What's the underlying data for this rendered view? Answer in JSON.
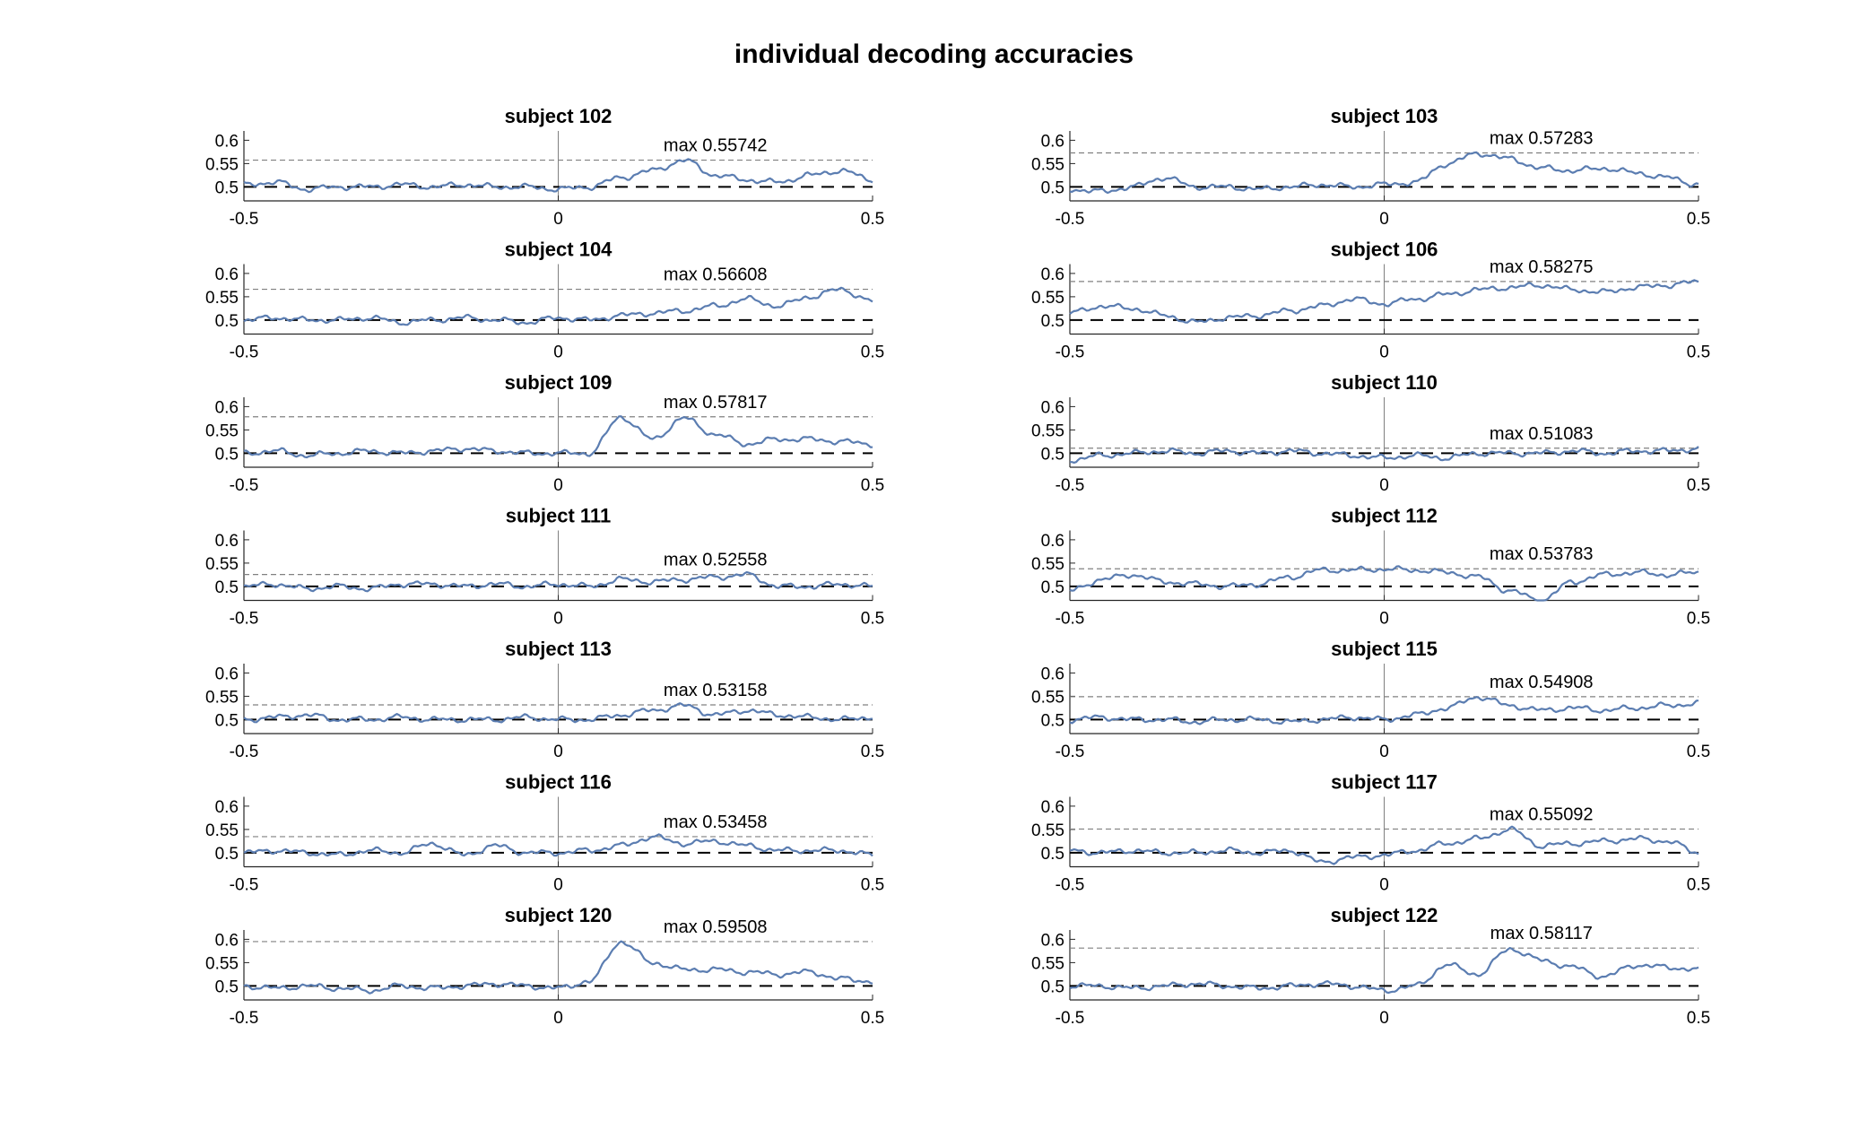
{
  "figure": {
    "title": "individual decoding accuracies"
  },
  "chart_data": [
    {
      "type": "line",
      "title": "subject 102",
      "annotation": "max 0.55742",
      "max": 0.55742,
      "xlim": [
        -0.5,
        0.5
      ],
      "ylim": [
        0.47,
        0.62
      ],
      "xticks": [
        -0.5,
        0,
        0.5
      ],
      "yticks": [
        0.5,
        0.55,
        0.6
      ],
      "chance": 0.5,
      "x": [
        -0.5,
        -0.45,
        -0.4,
        -0.35,
        -0.3,
        -0.25,
        -0.2,
        -0.15,
        -0.1,
        -0.05,
        0,
        0.05,
        0.1,
        0.15,
        0.2,
        0.25,
        0.3,
        0.35,
        0.4,
        0.45,
        0.5
      ],
      "series": [
        {
          "color": "#5b7db1",
          "values": [
            0.505,
            0.51,
            0.495,
            0.5,
            0.5,
            0.505,
            0.5,
            0.505,
            0.5,
            0.5,
            0.495,
            0.5,
            0.52,
            0.535,
            0.557,
            0.525,
            0.515,
            0.51,
            0.525,
            0.535,
            0.515
          ]
        }
      ]
    },
    {
      "type": "line",
      "title": "subject 103",
      "annotation": "max 0.57283",
      "max": 0.57283,
      "xlim": [
        -0.5,
        0.5
      ],
      "ylim": [
        0.47,
        0.62
      ],
      "xticks": [
        -0.5,
        0,
        0.5
      ],
      "yticks": [
        0.5,
        0.55,
        0.6
      ],
      "chance": 0.5,
      "x": [
        -0.5,
        -0.45,
        -0.4,
        -0.35,
        -0.3,
        -0.25,
        -0.2,
        -0.15,
        -0.1,
        -0.05,
        0,
        0.05,
        0.1,
        0.15,
        0.2,
        0.25,
        0.3,
        0.35,
        0.4,
        0.45,
        0.5
      ],
      "series": [
        {
          "color": "#5b7db1",
          "values": [
            0.495,
            0.49,
            0.5,
            0.52,
            0.5,
            0.5,
            0.495,
            0.5,
            0.505,
            0.5,
            0.505,
            0.51,
            0.55,
            0.572,
            0.56,
            0.54,
            0.535,
            0.54,
            0.53,
            0.52,
            0.505
          ]
        }
      ]
    },
    {
      "type": "line",
      "title": "subject 104",
      "annotation": "max 0.56608",
      "max": 0.56608,
      "xlim": [
        -0.5,
        0.5
      ],
      "ylim": [
        0.47,
        0.62
      ],
      "xticks": [
        -0.5,
        0,
        0.5
      ],
      "yticks": [
        0.5,
        0.55,
        0.6
      ],
      "chance": 0.5,
      "x": [
        -0.5,
        -0.45,
        -0.4,
        -0.35,
        -0.3,
        -0.25,
        -0.2,
        -0.15,
        -0.1,
        -0.05,
        0,
        0.05,
        0.1,
        0.15,
        0.2,
        0.25,
        0.3,
        0.35,
        0.4,
        0.45,
        0.5
      ],
      "series": [
        {
          "color": "#5b7db1",
          "values": [
            0.5,
            0.505,
            0.5,
            0.5,
            0.505,
            0.495,
            0.5,
            0.505,
            0.5,
            0.495,
            0.505,
            0.5,
            0.51,
            0.515,
            0.52,
            0.53,
            0.545,
            0.53,
            0.55,
            0.566,
            0.54
          ]
        }
      ]
    },
    {
      "type": "line",
      "title": "subject 106",
      "annotation": "max 0.58275",
      "max": 0.58275,
      "xlim": [
        -0.5,
        0.5
      ],
      "ylim": [
        0.47,
        0.62
      ],
      "xticks": [
        -0.5,
        0,
        0.5
      ],
      "yticks": [
        0.5,
        0.55,
        0.6
      ],
      "chance": 0.5,
      "x": [
        -0.5,
        -0.45,
        -0.4,
        -0.35,
        -0.3,
        -0.25,
        -0.2,
        -0.15,
        -0.1,
        -0.05,
        0,
        0.05,
        0.1,
        0.15,
        0.2,
        0.25,
        0.3,
        0.35,
        0.4,
        0.45,
        0.5
      ],
      "series": [
        {
          "color": "#5b7db1",
          "values": [
            0.515,
            0.53,
            0.525,
            0.51,
            0.495,
            0.505,
            0.51,
            0.52,
            0.53,
            0.545,
            0.535,
            0.545,
            0.555,
            0.565,
            0.57,
            0.575,
            0.565,
            0.56,
            0.57,
            0.575,
            0.582
          ]
        }
      ]
    },
    {
      "type": "line",
      "title": "subject 109",
      "annotation": "max 0.57817",
      "max": 0.57817,
      "xlim": [
        -0.5,
        0.5
      ],
      "ylim": [
        0.47,
        0.62
      ],
      "xticks": [
        -0.5,
        0,
        0.5
      ],
      "yticks": [
        0.5,
        0.55,
        0.6
      ],
      "chance": 0.5,
      "x": [
        -0.5,
        -0.45,
        -0.4,
        -0.35,
        -0.3,
        -0.25,
        -0.2,
        -0.15,
        -0.1,
        -0.05,
        0,
        0.05,
        0.1,
        0.15,
        0.2,
        0.25,
        0.3,
        0.35,
        0.4,
        0.45,
        0.5
      ],
      "series": [
        {
          "color": "#5b7db1",
          "values": [
            0.5,
            0.505,
            0.495,
            0.5,
            0.505,
            0.5,
            0.505,
            0.51,
            0.505,
            0.5,
            0.5,
            0.5,
            0.578,
            0.53,
            0.575,
            0.54,
            0.52,
            0.53,
            0.53,
            0.525,
            0.52
          ]
        }
      ]
    },
    {
      "type": "line",
      "title": "subject 110",
      "annotation": "max 0.51083",
      "max": 0.51083,
      "xlim": [
        -0.5,
        0.5
      ],
      "ylim": [
        0.47,
        0.62
      ],
      "xticks": [
        -0.5,
        0,
        0.5
      ],
      "yticks": [
        0.5,
        0.55,
        0.6
      ],
      "chance": 0.5,
      "x": [
        -0.5,
        -0.45,
        -0.4,
        -0.35,
        -0.3,
        -0.25,
        -0.2,
        -0.15,
        -0.1,
        -0.05,
        0,
        0.05,
        0.1,
        0.15,
        0.2,
        0.25,
        0.3,
        0.35,
        0.4,
        0.45,
        0.5
      ],
      "series": [
        {
          "color": "#5b7db1",
          "values": [
            0.485,
            0.495,
            0.5,
            0.505,
            0.5,
            0.505,
            0.5,
            0.505,
            0.5,
            0.495,
            0.49,
            0.495,
            0.49,
            0.5,
            0.5,
            0.5,
            0.505,
            0.5,
            0.505,
            0.505,
            0.51
          ]
        }
      ]
    },
    {
      "type": "line",
      "title": "subject 111",
      "annotation": "max 0.52558",
      "max": 0.52558,
      "xlim": [
        -0.5,
        0.5
      ],
      "ylim": [
        0.47,
        0.62
      ],
      "xticks": [
        -0.5,
        0,
        0.5
      ],
      "yticks": [
        0.5,
        0.55,
        0.6
      ],
      "chance": 0.5,
      "x": [
        -0.5,
        -0.45,
        -0.4,
        -0.35,
        -0.3,
        -0.25,
        -0.2,
        -0.15,
        -0.1,
        -0.05,
        0,
        0.05,
        0.1,
        0.15,
        0.2,
        0.25,
        0.3,
        0.35,
        0.4,
        0.45,
        0.5
      ],
      "series": [
        {
          "color": "#5b7db1",
          "values": [
            0.5,
            0.505,
            0.495,
            0.5,
            0.495,
            0.505,
            0.505,
            0.5,
            0.505,
            0.5,
            0.505,
            0.5,
            0.515,
            0.51,
            0.515,
            0.52,
            0.525,
            0.5,
            0.5,
            0.505,
            0.5
          ]
        }
      ]
    },
    {
      "type": "line",
      "title": "subject 112",
      "annotation": "max 0.53783",
      "max": 0.53783,
      "xlim": [
        -0.5,
        0.5
      ],
      "ylim": [
        0.47,
        0.62
      ],
      "xticks": [
        -0.5,
        0,
        0.5
      ],
      "yticks": [
        0.5,
        0.55,
        0.6
      ],
      "chance": 0.5,
      "x": [
        -0.5,
        -0.45,
        -0.4,
        -0.35,
        -0.3,
        -0.25,
        -0.2,
        -0.15,
        -0.1,
        -0.05,
        0,
        0.05,
        0.1,
        0.15,
        0.2,
        0.25,
        0.3,
        0.35,
        0.4,
        0.45,
        0.5
      ],
      "series": [
        {
          "color": "#5b7db1",
          "values": [
            0.49,
            0.515,
            0.525,
            0.51,
            0.505,
            0.5,
            0.505,
            0.52,
            0.535,
            0.535,
            0.537,
            0.535,
            0.53,
            0.52,
            0.49,
            0.47,
            0.51,
            0.525,
            0.53,
            0.525,
            0.53
          ]
        }
      ]
    },
    {
      "type": "line",
      "title": "subject 113",
      "annotation": "max 0.53158",
      "max": 0.53158,
      "xlim": [
        -0.5,
        0.5
      ],
      "ylim": [
        0.47,
        0.62
      ],
      "xticks": [
        -0.5,
        0,
        0.5
      ],
      "yticks": [
        0.5,
        0.55,
        0.6
      ],
      "chance": 0.5,
      "x": [
        -0.5,
        -0.45,
        -0.4,
        -0.35,
        -0.3,
        -0.25,
        -0.2,
        -0.15,
        -0.1,
        -0.05,
        0,
        0.05,
        0.1,
        0.15,
        0.2,
        0.25,
        0.3,
        0.35,
        0.4,
        0.45,
        0.5
      ],
      "series": [
        {
          "color": "#5b7db1",
          "values": [
            0.5,
            0.505,
            0.51,
            0.5,
            0.5,
            0.505,
            0.5,
            0.5,
            0.5,
            0.505,
            0.5,
            0.5,
            0.51,
            0.52,
            0.53,
            0.51,
            0.52,
            0.51,
            0.505,
            0.5,
            0.505
          ]
        }
      ]
    },
    {
      "type": "line",
      "title": "subject 115",
      "annotation": "max 0.54908",
      "max": 0.54908,
      "xlim": [
        -0.5,
        0.5
      ],
      "ylim": [
        0.47,
        0.62
      ],
      "xticks": [
        -0.5,
        0,
        0.5
      ],
      "yticks": [
        0.5,
        0.55,
        0.6
      ],
      "chance": 0.5,
      "x": [
        -0.5,
        -0.45,
        -0.4,
        -0.35,
        -0.3,
        -0.25,
        -0.2,
        -0.15,
        -0.1,
        -0.05,
        0,
        0.05,
        0.1,
        0.15,
        0.2,
        0.25,
        0.3,
        0.35,
        0.4,
        0.45,
        0.5
      ],
      "series": [
        {
          "color": "#5b7db1",
          "values": [
            0.5,
            0.505,
            0.5,
            0.5,
            0.495,
            0.5,
            0.5,
            0.495,
            0.5,
            0.505,
            0.5,
            0.51,
            0.525,
            0.549,
            0.53,
            0.52,
            0.525,
            0.52,
            0.525,
            0.53,
            0.535
          ]
        }
      ]
    },
    {
      "type": "line",
      "title": "subject 116",
      "annotation": "max 0.53458",
      "max": 0.53458,
      "xlim": [
        -0.5,
        0.5
      ],
      "ylim": [
        0.47,
        0.62
      ],
      "xticks": [
        -0.5,
        0,
        0.5
      ],
      "yticks": [
        0.5,
        0.55,
        0.6
      ],
      "chance": 0.5,
      "x": [
        -0.5,
        -0.45,
        -0.4,
        -0.35,
        -0.3,
        -0.25,
        -0.2,
        -0.15,
        -0.1,
        -0.05,
        0,
        0.05,
        0.1,
        0.15,
        0.2,
        0.25,
        0.3,
        0.35,
        0.4,
        0.45,
        0.5
      ],
      "series": [
        {
          "color": "#5b7db1",
          "values": [
            0.5,
            0.505,
            0.5,
            0.495,
            0.505,
            0.5,
            0.52,
            0.495,
            0.515,
            0.5,
            0.5,
            0.505,
            0.515,
            0.534,
            0.52,
            0.525,
            0.515,
            0.505,
            0.505,
            0.505,
            0.495
          ]
        }
      ]
    },
    {
      "type": "line",
      "title": "subject 117",
      "annotation": "max 0.55092",
      "max": 0.55092,
      "xlim": [
        -0.5,
        0.5
      ],
      "ylim": [
        0.47,
        0.62
      ],
      "xticks": [
        -0.5,
        0,
        0.5
      ],
      "yticks": [
        0.5,
        0.55,
        0.6
      ],
      "chance": 0.5,
      "x": [
        -0.5,
        -0.45,
        -0.4,
        -0.35,
        -0.3,
        -0.25,
        -0.2,
        -0.15,
        -0.1,
        -0.05,
        0,
        0.05,
        0.1,
        0.15,
        0.2,
        0.25,
        0.3,
        0.35,
        0.4,
        0.45,
        0.5
      ],
      "series": [
        {
          "color": "#5b7db1",
          "values": [
            0.505,
            0.5,
            0.505,
            0.5,
            0.5,
            0.505,
            0.5,
            0.505,
            0.48,
            0.49,
            0.495,
            0.505,
            0.52,
            0.53,
            0.55,
            0.515,
            0.52,
            0.525,
            0.53,
            0.525,
            0.5
          ]
        }
      ]
    },
    {
      "type": "line",
      "title": "subject 120",
      "annotation": "max 0.59508",
      "max": 0.59508,
      "xlim": [
        -0.5,
        0.5
      ],
      "ylim": [
        0.47,
        0.62
      ],
      "xticks": [
        -0.5,
        0,
        0.5
      ],
      "yticks": [
        0.5,
        0.55,
        0.6
      ],
      "chance": 0.5,
      "x": [
        -0.5,
        -0.45,
        -0.4,
        -0.35,
        -0.3,
        -0.25,
        -0.2,
        -0.15,
        -0.1,
        -0.05,
        0,
        0.05,
        0.1,
        0.15,
        0.2,
        0.25,
        0.3,
        0.35,
        0.4,
        0.45,
        0.5
      ],
      "series": [
        {
          "color": "#5b7db1",
          "values": [
            0.5,
            0.495,
            0.5,
            0.495,
            0.49,
            0.5,
            0.495,
            0.5,
            0.505,
            0.5,
            0.495,
            0.51,
            0.595,
            0.55,
            0.535,
            0.535,
            0.53,
            0.525,
            0.53,
            0.515,
            0.51
          ]
        }
      ]
    },
    {
      "type": "line",
      "title": "subject 122",
      "annotation": "max 0.58117",
      "max": 0.58117,
      "xlim": [
        -0.5,
        0.5
      ],
      "ylim": [
        0.47,
        0.62
      ],
      "xticks": [
        -0.5,
        0,
        0.5
      ],
      "yticks": [
        0.5,
        0.55,
        0.6
      ],
      "chance": 0.5,
      "x": [
        -0.5,
        -0.45,
        -0.4,
        -0.35,
        -0.3,
        -0.25,
        -0.2,
        -0.15,
        -0.1,
        -0.05,
        0,
        0.05,
        0.1,
        0.15,
        0.2,
        0.25,
        0.3,
        0.35,
        0.4,
        0.45,
        0.5
      ],
      "series": [
        {
          "color": "#5b7db1",
          "values": [
            0.5,
            0.5,
            0.495,
            0.5,
            0.505,
            0.5,
            0.495,
            0.5,
            0.505,
            0.5,
            0.49,
            0.5,
            0.545,
            0.525,
            0.58,
            0.555,
            0.54,
            0.52,
            0.545,
            0.54,
            0.535
          ]
        }
      ]
    }
  ]
}
